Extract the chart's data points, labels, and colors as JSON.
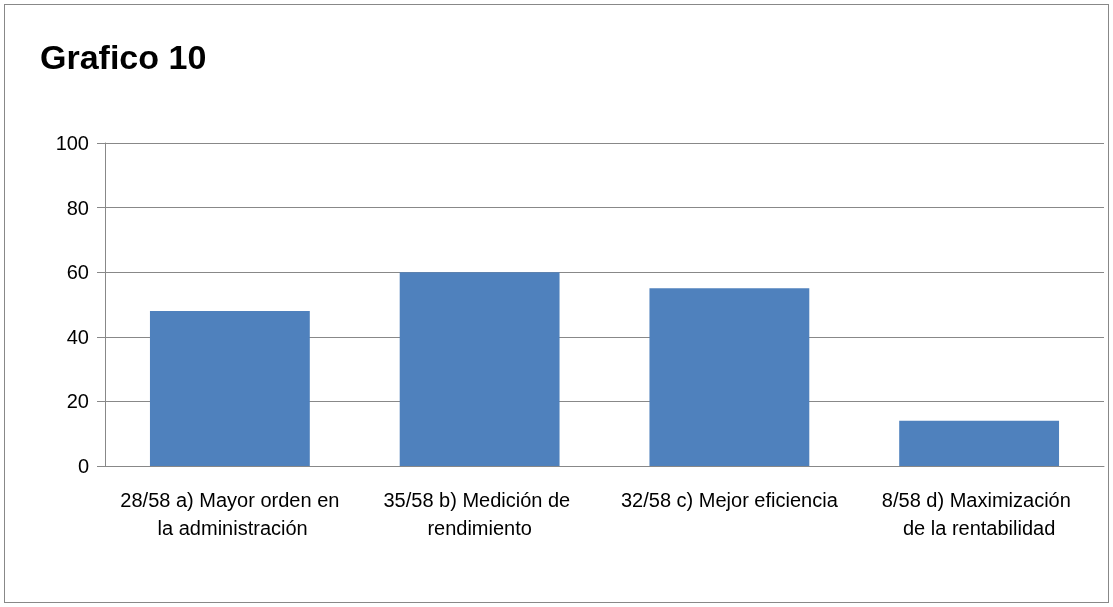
{
  "chart_data": {
    "type": "bar",
    "title": "Grafico 10",
    "categories": [
      "28/58 a) Mayor orden en la administración",
      "35/58 b) Medición de rendimiento",
      "32/58 c) Mejor eficiencia",
      "8/58 d) Maximización de la rentabilidad"
    ],
    "values": [
      48,
      60,
      55,
      14
    ],
    "color": "#4f81bd",
    "ylim": [
      0,
      100
    ],
    "yticks": [
      0,
      20,
      40,
      60,
      80,
      100
    ],
    "grid": "y"
  }
}
